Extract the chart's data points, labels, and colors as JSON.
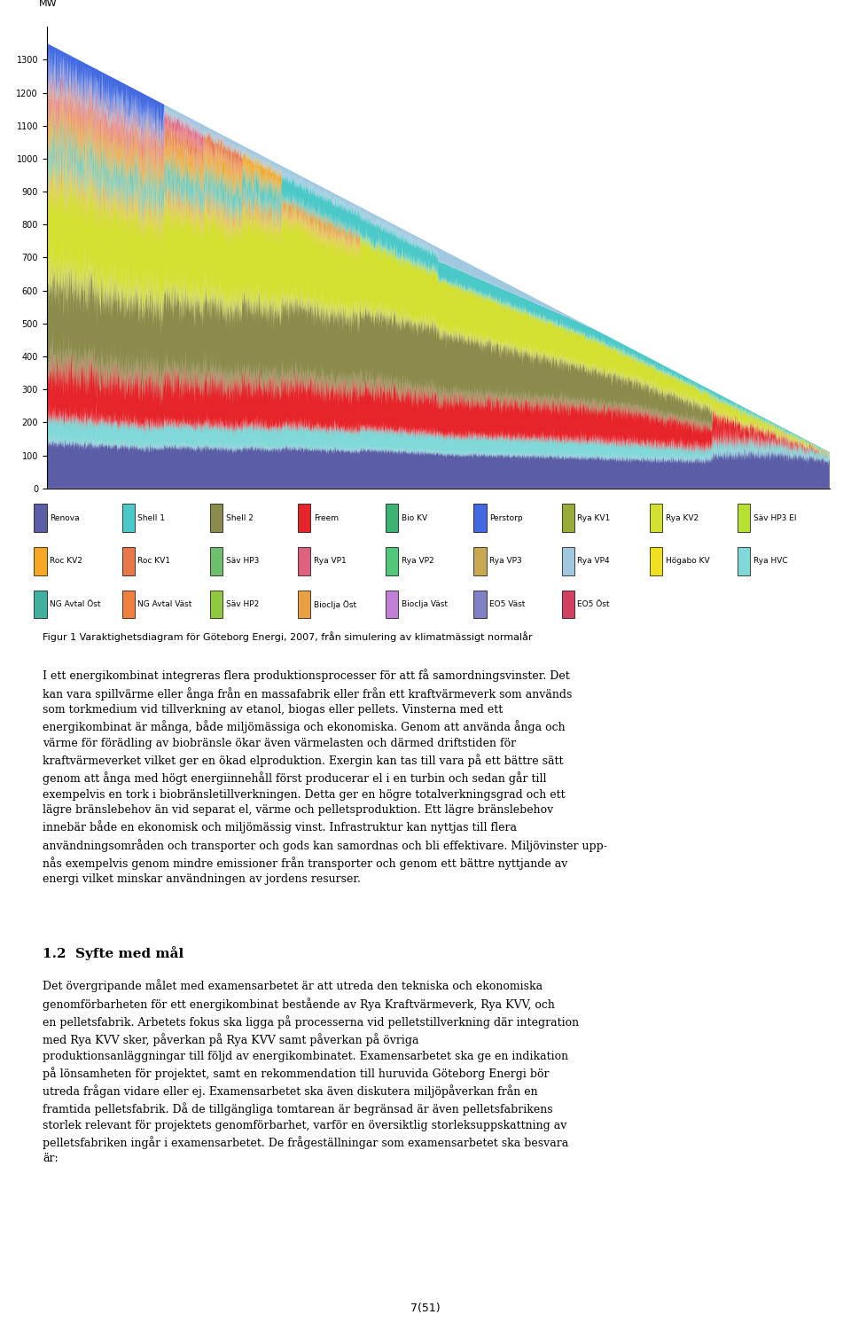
{
  "ylabel": "MW",
  "yticks": [
    0,
    100,
    200,
    300,
    400,
    500,
    600,
    700,
    800,
    900,
    1000,
    1100,
    1200,
    1300
  ],
  "ymax": 1400,
  "n_bars": 8760,
  "layer_colors": [
    "#5b5ea6",
    "#80d8d8",
    "#e8242b",
    "#8b8b4b",
    "#d4e030",
    "#e8a040",
    "#4bc8c8",
    "#f5a623",
    "#e8784a",
    "#e06080",
    "#a0c8e0",
    "#4169e1"
  ],
  "legend_cols": [
    [
      [
        "Renova",
        "#5b5ea6"
      ],
      [
        "Roc KV2",
        "#f5a623"
      ],
      [
        "NG Avtal Öst",
        "#40b0a0"
      ]
    ],
    [
      [
        "Shell 1",
        "#4bc8c8"
      ],
      [
        "Roc KV1",
        "#e8784a"
      ],
      [
        "NG Avtal Väst",
        "#f08040"
      ]
    ],
    [
      [
        "Shell 2",
        "#8b8b4b"
      ],
      [
        "Säv HP3",
        "#6dbf6d"
      ],
      [
        "Säv HP2",
        "#90c840"
      ]
    ],
    [
      [
        "Freem",
        "#e8242b"
      ],
      [
        "Rya VP1",
        "#e06080"
      ],
      [
        "Bioclja Öst",
        "#e8a040"
      ]
    ],
    [
      [
        "Bio KV",
        "#3cb371"
      ],
      [
        "Rya VP2",
        "#50c878"
      ],
      [
        "Bioclja Väst",
        "#c080d8"
      ]
    ],
    [
      [
        "Perstorp",
        "#4169e1"
      ],
      [
        "Rya VP3",
        "#c8a850"
      ],
      [
        "EO5 Väst",
        "#8080c8"
      ]
    ],
    [
      [
        "Rya KV1",
        "#9aab3a"
      ],
      [
        "Rya VP4",
        "#a0c8e0"
      ],
      [
        "EO5 Öst",
        "#d04060"
      ]
    ],
    [
      [
        "Rya KV2",
        "#d4e030"
      ],
      [
        "Högabo KV",
        "#f0e020"
      ],
      [
        "",
        "#ffffff"
      ]
    ],
    [
      [
        "Säv HP3 El",
        "#b8e030"
      ],
      [
        "Rya HVC",
        "#80d8d8"
      ],
      [
        "",
        "#ffffff"
      ]
    ]
  ],
  "figure_caption": "Figur 1 Varaktighetsdiagram för Göteborg Energi, 2007, från simulering av klimatmässigt normalår",
  "body_text": "I ett energikombinat integreras flera produktionsprocesser för att få samordningsvinster. Det\nkan vara spillvärme eller ånga från en massafabrik eller från ett kraftvärmeverk som används\nsom torkmedium vid tillverkning av etanol, biogas eller pellets. Vinsterna med ett\nenergikombinat är många, både miljömässiga och ekonomiska. Genom att använda ånga och\nvärme för förädling av biobränsle ökar även värmelasten och därmed driftstiden för\nkraftvärmeverket vilket ger en ökad elproduktion. Exergin kan tas till vara på ett bättre sätt\ngenom att ånga med högt energiinnehåll först producerar el i en turbin och sedan går till\nexempelvis en tork i biobränsletillverkningen. Detta ger en högre totalverkningsgrad och ett\nlägre bränslebehov än vid separat el, värme och pelletsproduktion. Ett lägre bränslebehov\ninnebär både en ekonomisk och miljömässig vinst. Infrastruktur kan nyttjas till flera\nanvändningsområden och transporter och gods kan samordnas och bli effektivare. Miljövinster upp-\nnås exempelvis genom mindre emissioner från transporter och genom ett bättre nyttjande av\nenergi vilket minskar användningen av jordens resurser.",
  "section_heading": "1.2  Syfte med mål",
  "section_body": "Det övergripande målet med examensarbetet är att utreda den tekniska och ekonomiska\ngenomförbarheten för ett energikombinat bestående av Rya Kraftvärmeverk, Rya KVV, och\nen pelletsfabrik. Arbetets fokus ska ligga på processerna vid pelletstillverkning där integration\nmed Rya KVV sker, påverkan på Rya KVV samt påverkan på övriga\nproduktionsanläggningar till följd av energikombinatet. Examensarbetet ska ge en indikation\npå lönsamheten för projektet, samt en rekommendation till huruvida Göteborg Energi bör\nutreda frågan vidare eller ej. Examensarbetet ska även diskutera miljöpåverkan från en\nframtida pelletsfabrik. Då de tillgängliga tomtarean är begränsad är även pelletsfabrikens\nstorlek relevant för projektets genomförbarhet, varför en översiktlig storleksuppskattning av\npelletsfabriken ingår i examensarbetet. De frågeställningar som examensarbetet ska besvara\när:",
  "page_number": "7(51)"
}
